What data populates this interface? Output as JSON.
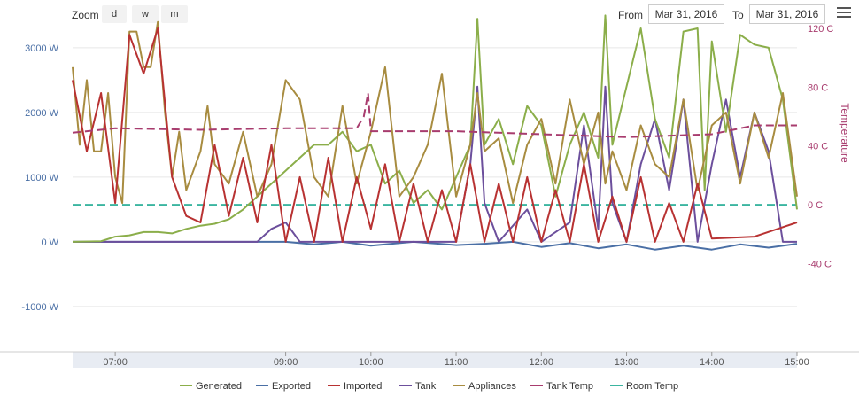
{
  "toolbar": {
    "zoom_label": "Zoom",
    "zoom_buttons": [
      "d",
      "w",
      "m"
    ],
    "from_label": "From",
    "from_value": "Mar 31, 2016",
    "to_label": "To",
    "to_value": "Mar 31, 2016"
  },
  "chart_data": {
    "type": "line",
    "title": "",
    "y_left": {
      "ticks": [
        "3000 W",
        "2000 W",
        "1000 W",
        "0 W",
        "-1000 W"
      ],
      "values": [
        3000,
        2000,
        1000,
        0,
        -1000
      ],
      "range": [
        -1700,
        3300
      ]
    },
    "y_right": {
      "label": "Temperature",
      "ticks": [
        "120 C",
        "80 C",
        "40 C",
        "0 C",
        "-40 C"
      ],
      "values": [
        120,
        80,
        40,
        0,
        -40
      ],
      "range": [
        -100,
        120
      ]
    },
    "x_axis": {
      "range": [
        "06:30",
        "15:00"
      ],
      "ticks": [
        "07:00",
        "09:00",
        "10:00",
        "11:00",
        "12:00",
        "13:00",
        "14:00",
        "15:00"
      ]
    },
    "legend_position": "bottom",
    "colors": {
      "Generated": "#8bae4a",
      "Exported": "#4a6fa5",
      "Imported": "#b83232",
      "Tank": "#6c4f9c",
      "Appliances": "#a88c40",
      "Tank Temp": "#a83c6e",
      "Room Temp": "#3bb5a0"
    },
    "series": [
      {
        "name": "Generated",
        "axis": "left",
        "points": [
          [
            "06:30",
            0
          ],
          [
            "06:50",
            10
          ],
          [
            "07:00",
            80
          ],
          [
            "07:10",
            100
          ],
          [
            "07:20",
            150
          ],
          [
            "07:30",
            150
          ],
          [
            "07:40",
            130
          ],
          [
            "07:50",
            200
          ],
          [
            "08:00",
            250
          ],
          [
            "08:10",
            280
          ],
          [
            "08:20",
            350
          ],
          [
            "08:30",
            500
          ],
          [
            "08:40",
            700
          ],
          [
            "08:50",
            900
          ],
          [
            "09:00",
            1100
          ],
          [
            "09:10",
            1300
          ],
          [
            "09:20",
            1500
          ],
          [
            "09:30",
            1500
          ],
          [
            "09:40",
            1700
          ],
          [
            "09:50",
            1400
          ],
          [
            "10:00",
            1500
          ],
          [
            "10:10",
            900
          ],
          [
            "10:20",
            1100
          ],
          [
            "10:30",
            600
          ],
          [
            "10:40",
            800
          ],
          [
            "10:50",
            500
          ],
          [
            "11:00",
            1000
          ],
          [
            "11:10",
            1500
          ],
          [
            "11:15",
            3450
          ],
          [
            "11:20",
            1500
          ],
          [
            "11:30",
            1900
          ],
          [
            "11:40",
            1200
          ],
          [
            "11:50",
            2100
          ],
          [
            "12:00",
            1800
          ],
          [
            "12:10",
            700
          ],
          [
            "12:20",
            1500
          ],
          [
            "12:30",
            2000
          ],
          [
            "12:40",
            1300
          ],
          [
            "12:45",
            3500
          ],
          [
            "12:50",
            1500
          ],
          [
            "13:00",
            2400
          ],
          [
            "13:10",
            3300
          ],
          [
            "13:20",
            1900
          ],
          [
            "13:30",
            1300
          ],
          [
            "13:40",
            3250
          ],
          [
            "13:50",
            3300
          ],
          [
            "13:55",
            800
          ],
          [
            "14:00",
            3100
          ],
          [
            "14:10",
            1700
          ],
          [
            "14:20",
            3200
          ],
          [
            "14:30",
            3050
          ],
          [
            "14:40",
            3000
          ],
          [
            "14:50",
            2200
          ],
          [
            "15:00",
            500
          ]
        ]
      },
      {
        "name": "Exported",
        "axis": "left",
        "points": [
          [
            "06:30",
            0
          ],
          [
            "09:00",
            0
          ],
          [
            "09:20",
            -40
          ],
          [
            "09:40",
            0
          ],
          [
            "10:00",
            -60
          ],
          [
            "10:30",
            0
          ],
          [
            "11:00",
            -50
          ],
          [
            "11:20",
            -30
          ],
          [
            "11:40",
            0
          ],
          [
            "12:00",
            -80
          ],
          [
            "12:20",
            -20
          ],
          [
            "12:40",
            -100
          ],
          [
            "13:00",
            -40
          ],
          [
            "13:20",
            -120
          ],
          [
            "13:40",
            -60
          ],
          [
            "14:00",
            -120
          ],
          [
            "14:20",
            -40
          ],
          [
            "14:40",
            -90
          ],
          [
            "15:00",
            -30
          ]
        ]
      },
      {
        "name": "Imported",
        "axis": "left",
        "points": [
          [
            "06:30",
            2500
          ],
          [
            "06:40",
            1400
          ],
          [
            "06:50",
            2300
          ],
          [
            "07:00",
            600
          ],
          [
            "07:10",
            3200
          ],
          [
            "07:20",
            2600
          ],
          [
            "07:30",
            3300
          ],
          [
            "07:40",
            1000
          ],
          [
            "07:50",
            400
          ],
          [
            "08:00",
            300
          ],
          [
            "08:10",
            1500
          ],
          [
            "08:20",
            400
          ],
          [
            "08:30",
            1300
          ],
          [
            "08:40",
            300
          ],
          [
            "08:50",
            1500
          ],
          [
            "09:00",
            0
          ],
          [
            "09:10",
            1000
          ],
          [
            "09:20",
            0
          ],
          [
            "09:30",
            1300
          ],
          [
            "09:40",
            0
          ],
          [
            "09:50",
            1000
          ],
          [
            "10:00",
            200
          ],
          [
            "10:10",
            1200
          ],
          [
            "10:20",
            0
          ],
          [
            "10:30",
            900
          ],
          [
            "10:40",
            0
          ],
          [
            "10:50",
            800
          ],
          [
            "11:00",
            0
          ],
          [
            "11:10",
            1200
          ],
          [
            "11:20",
            0
          ],
          [
            "11:30",
            900
          ],
          [
            "11:40",
            0
          ],
          [
            "11:50",
            1000
          ],
          [
            "12:00",
            0
          ],
          [
            "12:10",
            800
          ],
          [
            "12:20",
            0
          ],
          [
            "12:30",
            1200
          ],
          [
            "12:40",
            0
          ],
          [
            "12:50",
            700
          ],
          [
            "13:00",
            0
          ],
          [
            "13:10",
            1000
          ],
          [
            "13:20",
            0
          ],
          [
            "13:30",
            600
          ],
          [
            "13:40",
            0
          ],
          [
            "13:50",
            900
          ],
          [
            "14:00",
            50
          ],
          [
            "14:30",
            80
          ],
          [
            "15:00",
            300
          ]
        ]
      },
      {
        "name": "Tank",
        "axis": "left",
        "points": [
          [
            "06:30",
            0
          ],
          [
            "08:40",
            0
          ],
          [
            "08:50",
            200
          ],
          [
            "09:00",
            300
          ],
          [
            "09:10",
            0
          ],
          [
            "11:00",
            0
          ],
          [
            "11:10",
            1200
          ],
          [
            "11:15",
            2400
          ],
          [
            "11:20",
            600
          ],
          [
            "11:30",
            0
          ],
          [
            "11:50",
            500
          ],
          [
            "12:00",
            0
          ],
          [
            "12:20",
            300
          ],
          [
            "12:30",
            1800
          ],
          [
            "12:40",
            200
          ],
          [
            "12:45",
            2400
          ],
          [
            "12:50",
            600
          ],
          [
            "13:00",
            0
          ],
          [
            "13:10",
            1200
          ],
          [
            "13:20",
            1900
          ],
          [
            "13:30",
            800
          ],
          [
            "13:40",
            2200
          ],
          [
            "13:50",
            0
          ],
          [
            "14:00",
            1200
          ],
          [
            "14:10",
            2200
          ],
          [
            "14:20",
            1000
          ],
          [
            "14:30",
            2000
          ],
          [
            "14:40",
            1400
          ],
          [
            "14:50",
            0
          ],
          [
            "15:00",
            0
          ]
        ]
      },
      {
        "name": "Appliances",
        "axis": "left",
        "points": [
          [
            "06:30",
            2700
          ],
          [
            "06:35",
            1500
          ],
          [
            "06:40",
            2500
          ],
          [
            "06:45",
            1400
          ],
          [
            "06:50",
            1400
          ],
          [
            "06:55",
            2300
          ],
          [
            "07:00",
            1000
          ],
          [
            "07:05",
            600
          ],
          [
            "07:10",
            3250
          ],
          [
            "07:15",
            3250
          ],
          [
            "07:20",
            2700
          ],
          [
            "07:25",
            2700
          ],
          [
            "07:30",
            3400
          ],
          [
            "07:35",
            2000
          ],
          [
            "07:40",
            1000
          ],
          [
            "07:45",
            1700
          ],
          [
            "07:50",
            800
          ],
          [
            "08:00",
            1400
          ],
          [
            "08:05",
            2100
          ],
          [
            "08:10",
            1200
          ],
          [
            "08:20",
            900
          ],
          [
            "08:30",
            1700
          ],
          [
            "08:40",
            700
          ],
          [
            "08:50",
            1200
          ],
          [
            "09:00",
            2500
          ],
          [
            "09:10",
            2200
          ],
          [
            "09:20",
            1000
          ],
          [
            "09:30",
            700
          ],
          [
            "09:40",
            2100
          ],
          [
            "09:50",
            900
          ],
          [
            "10:00",
            1700
          ],
          [
            "10:10",
            2700
          ],
          [
            "10:20",
            700
          ],
          [
            "10:30",
            1000
          ],
          [
            "10:40",
            1500
          ],
          [
            "10:50",
            2600
          ],
          [
            "11:00",
            700
          ],
          [
            "11:10",
            1500
          ],
          [
            "11:15",
            2300
          ],
          [
            "11:20",
            1400
          ],
          [
            "11:30",
            1600
          ],
          [
            "11:40",
            600
          ],
          [
            "11:50",
            1500
          ],
          [
            "12:00",
            1900
          ],
          [
            "12:10",
            900
          ],
          [
            "12:20",
            2200
          ],
          [
            "12:30",
            1200
          ],
          [
            "12:40",
            2000
          ],
          [
            "12:45",
            900
          ],
          [
            "12:50",
            1400
          ],
          [
            "13:00",
            800
          ],
          [
            "13:10",
            1800
          ],
          [
            "13:20",
            1200
          ],
          [
            "13:30",
            1000
          ],
          [
            "13:40",
            2200
          ],
          [
            "13:50",
            800
          ],
          [
            "14:00",
            1800
          ],
          [
            "14:10",
            2000
          ],
          [
            "14:20",
            900
          ],
          [
            "14:30",
            2000
          ],
          [
            "14:40",
            1300
          ],
          [
            "14:50",
            2300
          ],
          [
            "15:00",
            700
          ]
        ]
      },
      {
        "name": "Tank Temp",
        "axis": "right",
        "points": [
          [
            "06:30",
            49
          ],
          [
            "07:00",
            52
          ],
          [
            "08:00",
            51
          ],
          [
            "09:00",
            52
          ],
          [
            "09:50",
            52
          ],
          [
            "09:55",
            60
          ],
          [
            "09:58",
            76
          ],
          [
            "10:00",
            50
          ],
          [
            "11:00",
            50
          ],
          [
            "12:00",
            48
          ],
          [
            "13:00",
            46
          ],
          [
            "14:00",
            48
          ],
          [
            "14:30",
            54
          ],
          [
            "15:00",
            54
          ]
        ]
      },
      {
        "name": "Room Temp",
        "axis": "right",
        "points": [
          [
            "06:30",
            0
          ],
          [
            "15:00",
            0
          ]
        ]
      }
    ]
  }
}
